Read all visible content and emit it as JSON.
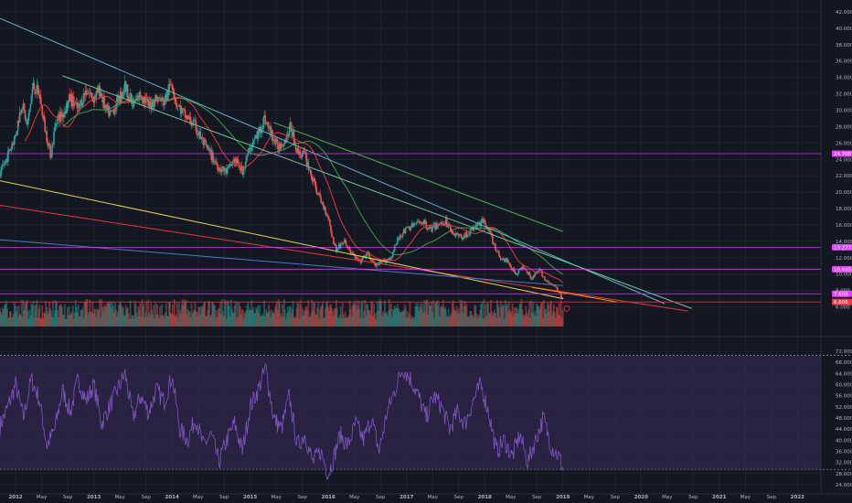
{
  "chart_data": {
    "type": "line",
    "price_axis": {
      "ticks": [
        6,
        8,
        10,
        12,
        14,
        16,
        18,
        20,
        22,
        24,
        26,
        28,
        30,
        32,
        34,
        36,
        38,
        40,
        42
      ],
      "tick_labels": [
        "6.000",
        "8.000",
        "10.000",
        "12.000",
        "14.000",
        "16.000",
        "18.000",
        "20.000",
        "22.000",
        "24.000",
        "26.000",
        "28.000",
        "30.000",
        "32.000",
        "34.000",
        "36.000",
        "38.000",
        "40.000",
        "42.000"
      ],
      "ylim": [
        3.5,
        43
      ]
    },
    "rsi_axis": {
      "ticks": [
        24,
        28,
        32,
        36,
        40,
        44,
        48,
        52,
        56,
        60,
        64,
        68,
        72
      ],
      "tick_labels": [
        "24.0000",
        "28.0000",
        "32.0000",
        "36.0000",
        "40.0000",
        "44.0000",
        "48.0000",
        "52.0000",
        "56.0000",
        "60.0000",
        "64.0000",
        "68.0000",
        "72.0000"
      ],
      "ylim": [
        22,
        74
      ],
      "band": [
        29.5,
        70.5
      ],
      "midline": 50
    },
    "time_axis": {
      "labels": [
        "2012",
        "May",
        "Sep",
        "2013",
        "May",
        "Sep",
        "2014",
        "May",
        "Sep",
        "2015",
        "May",
        "Sep",
        "2016",
        "May",
        "Sep",
        "2017",
        "May",
        "Sep",
        "2018",
        "May",
        "Sep",
        "2019",
        "May",
        "Sep",
        "2020",
        "May",
        "Sep",
        "2021",
        "May",
        "Sep",
        "2022"
      ],
      "bold": [
        true,
        false,
        false,
        true,
        false,
        false,
        true,
        false,
        false,
        true,
        false,
        false,
        true,
        false,
        false,
        true,
        false,
        false,
        true,
        false,
        false,
        true,
        false,
        false,
        true,
        false,
        false,
        true,
        false,
        false,
        true
      ],
      "xlim": [
        2011.8,
        2022.3
      ]
    },
    "price_series": [
      [
        2011.8,
        22.0
      ],
      [
        2011.9,
        24.5
      ],
      [
        2012.0,
        27.0
      ],
      [
        2012.08,
        31.0
      ],
      [
        2012.15,
        28.0
      ],
      [
        2012.22,
        33.0
      ],
      [
        2012.3,
        32.0
      ],
      [
        2012.38,
        27.5
      ],
      [
        2012.45,
        24.5
      ],
      [
        2012.52,
        29.0
      ],
      [
        2012.6,
        29.5
      ],
      [
        2012.7,
        31.5
      ],
      [
        2012.8,
        30.0
      ],
      [
        2012.9,
        32.5
      ],
      [
        2013.0,
        31.5
      ],
      [
        2013.08,
        32.5
      ],
      [
        2013.15,
        30.0
      ],
      [
        2013.22,
        29.5
      ],
      [
        2013.3,
        31.0
      ],
      [
        2013.4,
        33.0
      ],
      [
        2013.5,
        30.5
      ],
      [
        2013.6,
        32.0
      ],
      [
        2013.7,
        30.5
      ],
      [
        2013.8,
        31.5
      ],
      [
        2013.9,
        31.0
      ],
      [
        2014.0,
        33.5
      ],
      [
        2014.05,
        31.0
      ],
      [
        2014.15,
        29.5
      ],
      [
        2014.3,
        28.0
      ],
      [
        2014.4,
        26.0
      ],
      [
        2014.5,
        24.5
      ],
      [
        2014.6,
        23.0
      ],
      [
        2014.7,
        22.5
      ],
      [
        2014.8,
        24.0
      ],
      [
        2014.9,
        22.5
      ],
      [
        2015.0,
        25.5
      ],
      [
        2015.1,
        27.0
      ],
      [
        2015.18,
        29.0
      ],
      [
        2015.25,
        27.5
      ],
      [
        2015.35,
        25.5
      ],
      [
        2015.45,
        26.5
      ],
      [
        2015.52,
        28.0
      ],
      [
        2015.6,
        25.0
      ],
      [
        2015.7,
        24.5
      ],
      [
        2015.8,
        21.5
      ],
      [
        2015.9,
        19.0
      ],
      [
        2016.0,
        17.0
      ],
      [
        2016.05,
        14.5
      ],
      [
        2016.1,
        13.0
      ],
      [
        2016.2,
        14.0
      ],
      [
        2016.3,
        12.5
      ],
      [
        2016.4,
        11.5
      ],
      [
        2016.5,
        12.5
      ],
      [
        2016.6,
        11.0
      ],
      [
        2016.7,
        11.5
      ],
      [
        2016.8,
        12.0
      ],
      [
        2016.9,
        14.5
      ],
      [
        2017.0,
        15.5
      ],
      [
        2017.1,
        16.0
      ],
      [
        2017.2,
        16.5
      ],
      [
        2017.3,
        15.5
      ],
      [
        2017.4,
        16.0
      ],
      [
        2017.5,
        16.5
      ],
      [
        2017.6,
        15.0
      ],
      [
        2017.7,
        14.5
      ],
      [
        2017.8,
        15.0
      ],
      [
        2017.9,
        16.0
      ],
      [
        2018.0,
        16.5
      ],
      [
        2018.05,
        15.5
      ],
      [
        2018.12,
        13.5
      ],
      [
        2018.2,
        12.0
      ],
      [
        2018.3,
        11.5
      ],
      [
        2018.4,
        10.0
      ],
      [
        2018.5,
        11.0
      ],
      [
        2018.6,
        9.5
      ],
      [
        2018.7,
        10.5
      ],
      [
        2018.8,
        9.0
      ],
      [
        2018.9,
        8.5
      ],
      [
        2019.0,
        7.0
      ]
    ],
    "rsi_series": [
      [
        2011.8,
        45
      ],
      [
        2011.9,
        52
      ],
      [
        2012.0,
        60
      ],
      [
        2012.1,
        48
      ],
      [
        2012.2,
        62
      ],
      [
        2012.3,
        55
      ],
      [
        2012.4,
        38
      ],
      [
        2012.5,
        44
      ],
      [
        2012.6,
        58
      ],
      [
        2012.7,
        50
      ],
      [
        2012.8,
        62
      ],
      [
        2012.9,
        54
      ],
      [
        2013.0,
        60
      ],
      [
        2013.1,
        46
      ],
      [
        2013.2,
        52
      ],
      [
        2013.3,
        58
      ],
      [
        2013.4,
        64
      ],
      [
        2013.5,
        48
      ],
      [
        2013.6,
        56
      ],
      [
        2013.7,
        50
      ],
      [
        2013.8,
        58
      ],
      [
        2013.9,
        54
      ],
      [
        2014.0,
        63
      ],
      [
        2014.1,
        44
      ],
      [
        2014.2,
        40
      ],
      [
        2014.3,
        48
      ],
      [
        2014.4,
        38
      ],
      [
        2014.5,
        42
      ],
      [
        2014.6,
        32
      ],
      [
        2014.7,
        40
      ],
      [
        2014.8,
        46
      ],
      [
        2014.9,
        36
      ],
      [
        2015.0,
        52
      ],
      [
        2015.1,
        58
      ],
      [
        2015.2,
        66
      ],
      [
        2015.3,
        48
      ],
      [
        2015.4,
        44
      ],
      [
        2015.5,
        56
      ],
      [
        2015.6,
        38
      ],
      [
        2015.7,
        42
      ],
      [
        2015.8,
        32
      ],
      [
        2015.9,
        36
      ],
      [
        2016.0,
        28
      ],
      [
        2016.05,
        32
      ],
      [
        2016.15,
        42
      ],
      [
        2016.25,
        38
      ],
      [
        2016.35,
        46
      ],
      [
        2016.45,
        40
      ],
      [
        2016.55,
        48
      ],
      [
        2016.65,
        36
      ],
      [
        2016.75,
        50
      ],
      [
        2016.85,
        58
      ],
      [
        2016.95,
        66
      ],
      [
        2017.05,
        62
      ],
      [
        2017.15,
        56
      ],
      [
        2017.25,
        48
      ],
      [
        2017.35,
        56
      ],
      [
        2017.45,
        52
      ],
      [
        2017.55,
        44
      ],
      [
        2017.65,
        50
      ],
      [
        2017.75,
        46
      ],
      [
        2017.85,
        54
      ],
      [
        2017.95,
        60
      ],
      [
        2018.05,
        50
      ],
      [
        2018.15,
        36
      ],
      [
        2018.25,
        40
      ],
      [
        2018.35,
        34
      ],
      [
        2018.45,
        42
      ],
      [
        2018.55,
        32
      ],
      [
        2018.65,
        40
      ],
      [
        2018.75,
        48
      ],
      [
        2018.85,
        38
      ],
      [
        2018.95,
        34
      ],
      [
        2019.0,
        30
      ]
    ],
    "trendlines": [
      {
        "color": "#5fb3c8",
        "points": [
          [
            2011.8,
            41.2
          ],
          [
            2020.3,
            6.4
          ]
        ]
      },
      {
        "color": "#6ec49a",
        "points": [
          [
            2012.6,
            34.2
          ],
          [
            2020.65,
            5.8
          ]
        ]
      },
      {
        "color": "#4caf50",
        "points": [
          [
            2015.3,
            28.5
          ],
          [
            2019.0,
            15.2
          ]
        ]
      },
      {
        "color": "#e53935",
        "points": [
          [
            2011.8,
            18.4
          ],
          [
            2020.6,
            5.5
          ]
        ]
      },
      {
        "color": "#e6d34a",
        "points": [
          [
            2011.8,
            21.4
          ],
          [
            2019.0,
            7.0
          ]
        ]
      },
      {
        "color": "#4a78c9",
        "points": [
          [
            2011.8,
            14.2
          ],
          [
            2019.0,
            8.6
          ]
        ]
      },
      {
        "color": "#ff9800",
        "points": [
          [
            2018.6,
            8.4
          ],
          [
            2019.7,
            6.6
          ]
        ]
      }
    ],
    "horizontal_levels": [
      {
        "value": 24.7,
        "label": "24.700",
        "color": "#e040fb"
      },
      {
        "value": 13.277,
        "label": "13.277",
        "color": "#e040fb"
      },
      {
        "value": 10.605,
        "label": "10.605",
        "color": "#e040fb"
      },
      {
        "value": 7.6,
        "label": "7.600",
        "color": "#e040fb"
      },
      {
        "value": 6.606,
        "label": "6.606",
        "color": "#f23645"
      }
    ],
    "colors": {
      "background": "#131722",
      "up": "#26a69a",
      "down": "#ef5350",
      "rsi_line": "#7e57c2",
      "rsi_band": "#3b2a5c",
      "ma_red": "#e53935",
      "ma_green": "#4caf50"
    }
  }
}
